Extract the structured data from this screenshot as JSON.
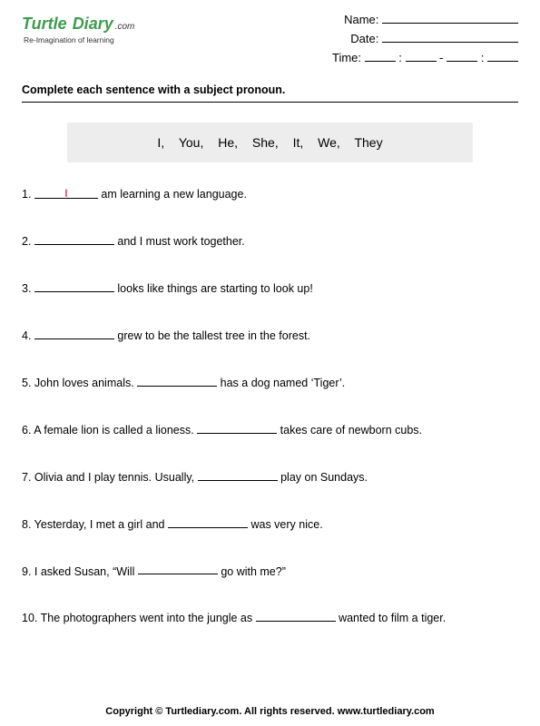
{
  "logo": {
    "word1": "Turtle",
    "word2": "Diary",
    "dotcom": ".com",
    "tagline": "Re-Imagination of learning"
  },
  "info": {
    "name_label": "Name:",
    "date_label": "Date:",
    "time_label": "Time:",
    "colon": ":",
    "dash": "-"
  },
  "instruction": "Complete each sentence with a subject pronoun.",
  "wordbank": "I,   You,   He,   She,   It,   We,   They",
  "questions": {
    "q1": {
      "num": "1.",
      "answer": "I",
      "after": " am learning a new language."
    },
    "q2": {
      "num": "2.",
      "after": " and I must work together."
    },
    "q3": {
      "num": "3.",
      "after": " looks like things are starting to look up!"
    },
    "q4": {
      "num": "4.",
      "after": " grew to be the tallest tree in the forest."
    },
    "q5": {
      "num": "5.",
      "before": " John loves animals. ",
      "after": " has a dog named ‘Tiger’."
    },
    "q6": {
      "num": "6.",
      "before": " A female lion is called a lioness. ",
      "after": " takes care of newborn cubs."
    },
    "q7": {
      "num": "7.",
      "before": " Olivia and I play tennis. Usually, ",
      "after": " play on Sundays."
    },
    "q8": {
      "num": "8.",
      "before": " Yesterday, I met a girl and ",
      "after": " was very nice."
    },
    "q9": {
      "num": "9.",
      "before": " I asked Susan, “Will ",
      "after": " go with me?”"
    },
    "q10": {
      "num": "10.",
      "before": " The photographers went into the jungle as ",
      "after": " wanted to film a tiger."
    }
  },
  "footer": "Copyright © Turtlediary.com. All rights reserved. www.turtlediary.com"
}
